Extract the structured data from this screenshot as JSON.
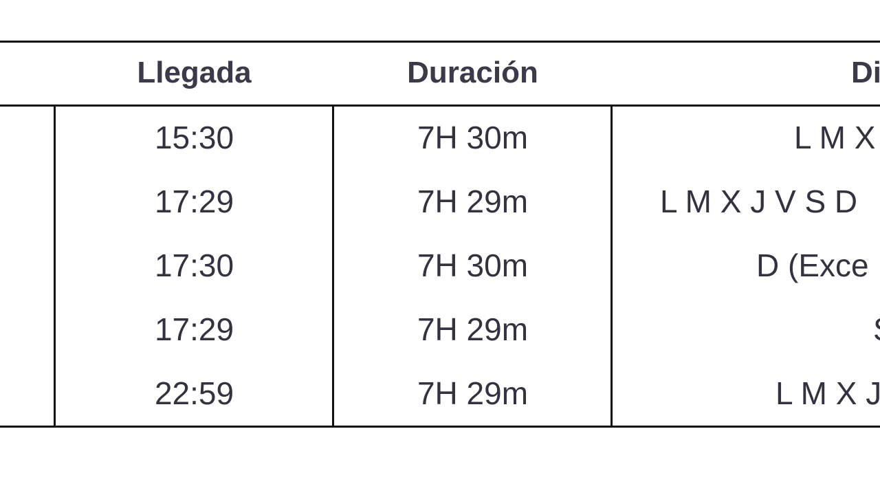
{
  "table": {
    "headers": [
      "Llegada",
      "Duración",
      "Di"
    ],
    "rows": [
      {
        "llegada": "15:30",
        "duracion": "7H 30m",
        "dias": "L M X"
      },
      {
        "llegada": "17:29",
        "duracion": "7H 29m",
        "dias": "L M X J V S D"
      },
      {
        "llegada": "17:30",
        "duracion": "7H 30m",
        "dias": "D (Exce"
      },
      {
        "llegada": "17:29",
        "duracion": "7H 29m",
        "dias": "S"
      },
      {
        "llegada": "22:59",
        "duracion": "7H 29m",
        "dias": "L M X J"
      }
    ]
  }
}
